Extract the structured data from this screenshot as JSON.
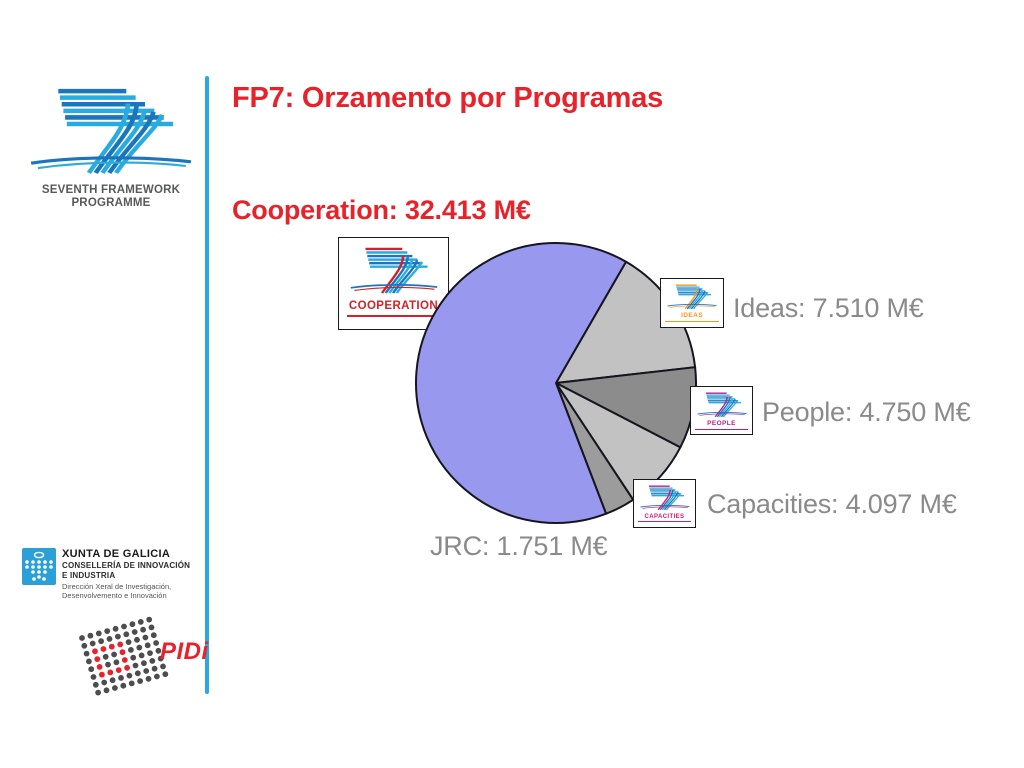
{
  "slide": {
    "title": "FP7: Orzamento por Programas",
    "labels": {
      "cooperation": "Cooperation: 32.413 M€",
      "ideas": "Ideas: 7.510 M€",
      "people": "People: 4.750 M€",
      "capacities": "Capacities: 4.097 M€",
      "jrc": "JRC: 1.751 M€"
    }
  },
  "chart_data": {
    "type": "pie",
    "title": "FP7: Orzamento por Programas",
    "unit": "M€",
    "categories": [
      "Ideas",
      "People",
      "Capacities",
      "JRC",
      "Cooperation"
    ],
    "values": [
      7510,
      4750,
      4097,
      1751,
      32413
    ],
    "display_values": [
      "7.510",
      "4.750",
      "4.097",
      "1.751",
      "32.413"
    ],
    "colors": [
      "#c2c2c2",
      "#8c8c8c",
      "#c2c2c2",
      "#9c9c9c",
      "#9898ee"
    ],
    "outline_color": "#15151f",
    "start_angle_deg": 30,
    "direction": "clockwise",
    "legend_position": "callout-labels-around-pie"
  },
  "fp7_logo": {
    "caption_line1": "SEVENTH FRAMEWORK",
    "caption_line2": "PROGRAMME"
  },
  "mini_logos": {
    "cooperation": {
      "label": "COOPERATION",
      "accent": "#d42027"
    },
    "ideas": {
      "label": "IDEAS",
      "accent": "#f7941d"
    },
    "people": {
      "label": "PEOPLE",
      "accent": "#b0208c"
    },
    "capacities": {
      "label": "CAPACITIES",
      "accent": "#d6186e"
    }
  },
  "xunta_logo": {
    "line1": "XUNTA DE GALICIA",
    "line2": "CONSELLERÍA DE INNOVACIÓN",
    "line3": "E INDUSTRIA",
    "line4": "Dirección Xeral de Investigación,",
    "line5": "Desenvolvemento e Innovación"
  },
  "pidi_logo": {
    "text": "PIDi"
  },
  "colors": {
    "title_red": "#e8222a",
    "label_gray": "#8a8a8a",
    "divider_blue": "#2aa9e0",
    "logo_blue_dark": "#1b75bc",
    "logo_blue_light": "#29abe2"
  }
}
